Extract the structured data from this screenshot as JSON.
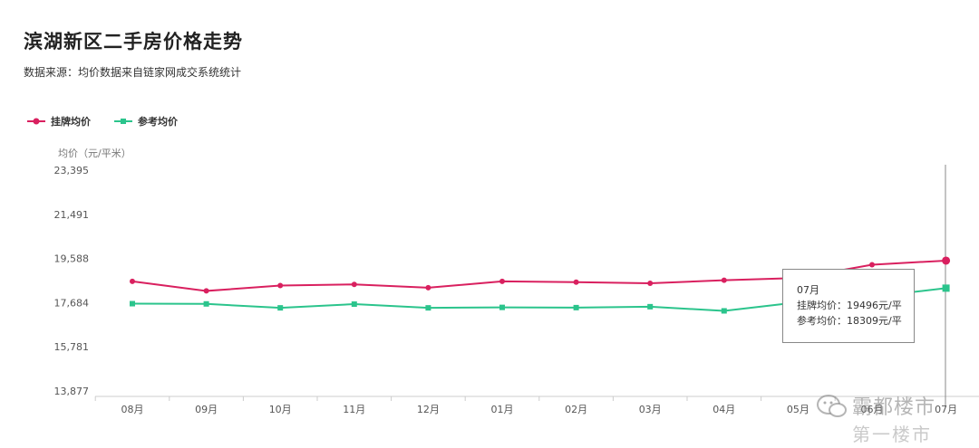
{
  "title": "滨湖新区二手房价格走势",
  "subtitle": "数据来源：均价数据来自链家网成交系统统计",
  "colors": {
    "listing": "#d9205f",
    "reference": "#2bc48c",
    "axis": "#cccccc"
  },
  "tooltip": {
    "month": "07月",
    "listing_text": "挂牌均价：19496元/平",
    "reference_text": "参考均价：18309元/平"
  },
  "watermark": {
    "line1": "霸都楼市",
    "line2": "第一楼市",
    "icon": "wechat-icon"
  },
  "chart_data": {
    "type": "line",
    "title": "滨湖新区二手房价格走势",
    "ylabel": "均价（元/平米）",
    "xlabel": "",
    "categories": [
      "08月",
      "09月",
      "10月",
      "11月",
      "12月",
      "01月",
      "02月",
      "03月",
      "04月",
      "05月",
      "06月",
      "07月"
    ],
    "y_ticks": [
      "23,395",
      "21,491",
      "19,588",
      "17,684",
      "15,781",
      "13,877"
    ],
    "y_tick_values": [
      23395,
      21491,
      19588,
      17684,
      15781,
      13877
    ],
    "ylim": [
      13877,
      23395
    ],
    "grid": false,
    "legend_position": "top-left",
    "series": [
      {
        "name": "挂牌均价",
        "marker": "circle",
        "values": [
          18600,
          18190,
          18420,
          18470,
          18330,
          18600,
          18570,
          18520,
          18650,
          18750,
          19320,
          19496
        ]
      },
      {
        "name": "参考均价",
        "marker": "square",
        "values": [
          17640,
          17630,
          17460,
          17620,
          17460,
          17480,
          17470,
          17510,
          17330,
          17700,
          17940,
          18309
        ]
      }
    ]
  }
}
